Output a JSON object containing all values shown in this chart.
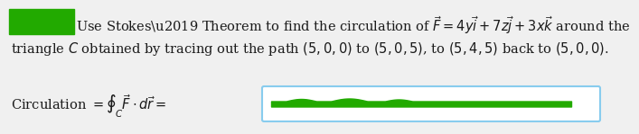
{
  "background_color": "#f0f0f0",
  "text_line1": "Use Stokes\\u2019 Theorem to find the circulation of $\\vec{F} = 4y\\vec{i} + 7z\\vec{j} + 3x\\vec{k}$ around the",
  "text_line2": "triangle $C$ obtained by tracing out the path $(5, 0, 0)$ to $(5, 0, 5)$, to $(5, 4, 5)$ back to $(5, 0, 0)$.",
  "text_circ": "Circulation $= \\oint_C \\vec{F} \\cdot d\\vec{r} =$",
  "green_rect_color": "#22aa00",
  "input_box_border_color": "#88ccee",
  "input_box_fill": "#ffffff",
  "green_line_color": "#22aa00",
  "text_color_dark": "#1a1a1a",
  "text_color_circ": "#1a1a1a",
  "font_size_main": 10.5,
  "font_size_circ": 10.5
}
